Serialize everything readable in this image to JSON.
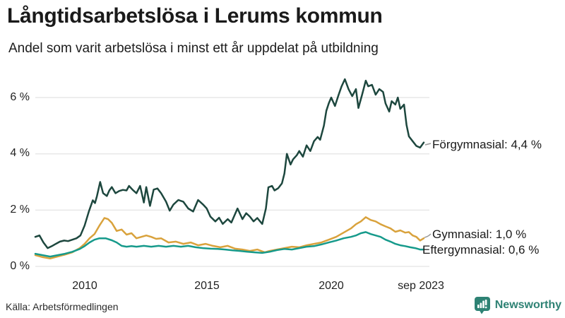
{
  "header": {
    "title": "Långtidsarbetslösa i Lerums kommun",
    "subtitle": "Andel som varit arbetslösa i minst ett år uppdelat på utbildning"
  },
  "chart_data": {
    "type": "line",
    "title": "Långtidsarbetslösa i Lerums kommun",
    "subtitle": "Andel som varit arbetslösa i minst ett år uppdelat på utbildning",
    "grid": true,
    "legend_position": "right-of-line-ends",
    "x_axis": {
      "range": [
        2008.0,
        2023.75
      ],
      "ticks": [
        {
          "label": "2010",
          "value": 2010
        },
        {
          "label": "2015",
          "value": 2015
        },
        {
          "label": "2020",
          "value": 2020
        },
        {
          "label": "sep 2023",
          "value": 2023.67
        }
      ]
    },
    "y_axis": {
      "unit": "%",
      "range": [
        0,
        7
      ],
      "ticks": [
        {
          "label": "6 %",
          "value": 6
        },
        {
          "label": "4 %",
          "value": 4
        },
        {
          "label": "2 %",
          "value": 2
        },
        {
          "label": "0 %",
          "value": 0
        }
      ]
    },
    "series": [
      {
        "name": "Förgymnasial",
        "end_label": "Förgymnasial: 4,4 %",
        "end_value_pct": 4.4,
        "color": "#1d473e",
        "points": [
          [
            2008.0,
            1.05
          ],
          [
            2008.17,
            1.1
          ],
          [
            2008.33,
            0.85
          ],
          [
            2008.5,
            0.65
          ],
          [
            2008.67,
            0.72
          ],
          [
            2008.83,
            0.8
          ],
          [
            2009.0,
            0.88
          ],
          [
            2009.17,
            0.92
          ],
          [
            2009.33,
            0.9
          ],
          [
            2009.5,
            0.95
          ],
          [
            2009.67,
            1.0
          ],
          [
            2009.83,
            1.1
          ],
          [
            2010.0,
            1.45
          ],
          [
            2010.17,
            1.95
          ],
          [
            2010.33,
            2.35
          ],
          [
            2010.42,
            2.25
          ],
          [
            2010.5,
            2.5
          ],
          [
            2010.63,
            3.0
          ],
          [
            2010.75,
            2.6
          ],
          [
            2010.9,
            2.5
          ],
          [
            2011.0,
            2.7
          ],
          [
            2011.1,
            2.82
          ],
          [
            2011.25,
            2.6
          ],
          [
            2011.4,
            2.68
          ],
          [
            2011.55,
            2.72
          ],
          [
            2011.7,
            2.7
          ],
          [
            2011.8,
            2.86
          ],
          [
            2011.95,
            2.72
          ],
          [
            2012.1,
            2.6
          ],
          [
            2012.25,
            2.86
          ],
          [
            2012.4,
            2.27
          ],
          [
            2012.5,
            2.82
          ],
          [
            2012.65,
            2.15
          ],
          [
            2012.8,
            2.73
          ],
          [
            2012.95,
            2.77
          ],
          [
            2013.1,
            2.6
          ],
          [
            2013.3,
            2.3
          ],
          [
            2013.45,
            1.98
          ],
          [
            2013.6,
            2.2
          ],
          [
            2013.8,
            2.36
          ],
          [
            2014.0,
            2.3
          ],
          [
            2014.2,
            2.06
          ],
          [
            2014.4,
            1.95
          ],
          [
            2014.6,
            2.36
          ],
          [
            2014.8,
            2.2
          ],
          [
            2014.95,
            2.06
          ],
          [
            2015.1,
            1.77
          ],
          [
            2015.3,
            1.6
          ],
          [
            2015.45,
            1.73
          ],
          [
            2015.6,
            1.51
          ],
          [
            2015.8,
            1.68
          ],
          [
            2015.95,
            1.56
          ],
          [
            2016.2,
            2.06
          ],
          [
            2016.4,
            1.68
          ],
          [
            2016.55,
            1.89
          ],
          [
            2016.7,
            1.77
          ],
          [
            2016.85,
            1.6
          ],
          [
            2017.0,
            1.72
          ],
          [
            2017.2,
            1.51
          ],
          [
            2017.35,
            2.06
          ],
          [
            2017.45,
            2.81
          ],
          [
            2017.6,
            2.86
          ],
          [
            2017.7,
            2.7
          ],
          [
            2017.85,
            2.78
          ],
          [
            2018.0,
            2.95
          ],
          [
            2018.1,
            3.3
          ],
          [
            2018.2,
            4.0
          ],
          [
            2018.35,
            3.62
          ],
          [
            2018.45,
            3.8
          ],
          [
            2018.6,
            3.95
          ],
          [
            2018.7,
            4.1
          ],
          [
            2018.85,
            3.9
          ],
          [
            2019.0,
            4.3
          ],
          [
            2019.15,
            4.1
          ],
          [
            2019.3,
            4.45
          ],
          [
            2019.45,
            4.6
          ],
          [
            2019.55,
            4.5
          ],
          [
            2019.7,
            5.0
          ],
          [
            2019.8,
            5.53
          ],
          [
            2019.9,
            5.8
          ],
          [
            2020.0,
            6.0
          ],
          [
            2020.15,
            5.7
          ],
          [
            2020.3,
            6.1
          ],
          [
            2020.42,
            6.4
          ],
          [
            2020.55,
            6.65
          ],
          [
            2020.7,
            6.3
          ],
          [
            2020.85,
            6.05
          ],
          [
            2021.0,
            6.3
          ],
          [
            2021.1,
            5.63
          ],
          [
            2021.25,
            6.1
          ],
          [
            2021.4,
            6.6
          ],
          [
            2021.5,
            6.4
          ],
          [
            2021.65,
            6.45
          ],
          [
            2021.8,
            6.1
          ],
          [
            2021.95,
            6.3
          ],
          [
            2022.1,
            6.2
          ],
          [
            2022.2,
            5.79
          ],
          [
            2022.35,
            5.5
          ],
          [
            2022.45,
            5.87
          ],
          [
            2022.6,
            5.75
          ],
          [
            2022.7,
            6.0
          ],
          [
            2022.8,
            5.6
          ],
          [
            2022.95,
            5.75
          ],
          [
            2023.05,
            5.03
          ],
          [
            2023.15,
            4.62
          ],
          [
            2023.3,
            4.45
          ],
          [
            2023.45,
            4.28
          ],
          [
            2023.6,
            4.22
          ],
          [
            2023.75,
            4.4
          ]
        ]
      },
      {
        "name": "Gymnasial",
        "end_label": "Gymnasial: 1,0 %",
        "end_value_pct": 1.0,
        "color": "#d9a23c",
        "points": [
          [
            2008.0,
            0.4
          ],
          [
            2008.3,
            0.33
          ],
          [
            2008.6,
            0.28
          ],
          [
            2008.9,
            0.35
          ],
          [
            2009.2,
            0.42
          ],
          [
            2009.5,
            0.5
          ],
          [
            2009.8,
            0.65
          ],
          [
            2010.0,
            0.8
          ],
          [
            2010.2,
            1.0
          ],
          [
            2010.4,
            1.15
          ],
          [
            2010.6,
            1.45
          ],
          [
            2010.8,
            1.72
          ],
          [
            2010.95,
            1.68
          ],
          [
            2011.1,
            1.55
          ],
          [
            2011.3,
            1.26
          ],
          [
            2011.5,
            1.31
          ],
          [
            2011.7,
            1.13
          ],
          [
            2011.9,
            1.18
          ],
          [
            2012.1,
            1.0
          ],
          [
            2012.3,
            1.05
          ],
          [
            2012.5,
            1.1
          ],
          [
            2012.7,
            1.05
          ],
          [
            2012.9,
            0.98
          ],
          [
            2013.1,
            1.0
          ],
          [
            2013.4,
            0.85
          ],
          [
            2013.7,
            0.88
          ],
          [
            2014.0,
            0.8
          ],
          [
            2014.3,
            0.85
          ],
          [
            2014.6,
            0.75
          ],
          [
            2014.9,
            0.8
          ],
          [
            2015.2,
            0.73
          ],
          [
            2015.5,
            0.68
          ],
          [
            2015.8,
            0.73
          ],
          [
            2016.1,
            0.63
          ],
          [
            2016.4,
            0.6
          ],
          [
            2016.7,
            0.55
          ],
          [
            2017.0,
            0.6
          ],
          [
            2017.3,
            0.5
          ],
          [
            2017.5,
            0.55
          ],
          [
            2017.8,
            0.6
          ],
          [
            2018.1,
            0.65
          ],
          [
            2018.4,
            0.7
          ],
          [
            2018.7,
            0.68
          ],
          [
            2019.0,
            0.75
          ],
          [
            2019.3,
            0.8
          ],
          [
            2019.6,
            0.85
          ],
          [
            2019.9,
            0.95
          ],
          [
            2020.2,
            1.05
          ],
          [
            2020.5,
            1.2
          ],
          [
            2020.8,
            1.35
          ],
          [
            2021.0,
            1.5
          ],
          [
            2021.2,
            1.6
          ],
          [
            2021.4,
            1.75
          ],
          [
            2021.6,
            1.65
          ],
          [
            2021.8,
            1.6
          ],
          [
            2022.0,
            1.5
          ],
          [
            2022.2,
            1.42
          ],
          [
            2022.4,
            1.35
          ],
          [
            2022.6,
            1.23
          ],
          [
            2022.8,
            1.28
          ],
          [
            2023.0,
            1.2
          ],
          [
            2023.15,
            1.22
          ],
          [
            2023.3,
            1.1
          ],
          [
            2023.45,
            1.05
          ],
          [
            2023.6,
            0.92
          ],
          [
            2023.75,
            1.0
          ]
        ]
      },
      {
        "name": "Eftergymnasial",
        "end_label": "Eftergymnasial: 0,6 %",
        "end_value_pct": 0.6,
        "color": "#169a8b",
        "points": [
          [
            2008.0,
            0.45
          ],
          [
            2008.3,
            0.4
          ],
          [
            2008.6,
            0.35
          ],
          [
            2008.9,
            0.4
          ],
          [
            2009.2,
            0.45
          ],
          [
            2009.5,
            0.52
          ],
          [
            2009.8,
            0.62
          ],
          [
            2010.0,
            0.72
          ],
          [
            2010.2,
            0.85
          ],
          [
            2010.4,
            0.95
          ],
          [
            2010.6,
            1.0
          ],
          [
            2010.85,
            1.0
          ],
          [
            2011.1,
            0.93
          ],
          [
            2011.3,
            0.85
          ],
          [
            2011.5,
            0.73
          ],
          [
            2011.7,
            0.7
          ],
          [
            2011.9,
            0.72
          ],
          [
            2012.1,
            0.7
          ],
          [
            2012.4,
            0.73
          ],
          [
            2012.7,
            0.7
          ],
          [
            2013.0,
            0.73
          ],
          [
            2013.3,
            0.7
          ],
          [
            2013.6,
            0.73
          ],
          [
            2013.9,
            0.7
          ],
          [
            2014.2,
            0.73
          ],
          [
            2014.5,
            0.68
          ],
          [
            2014.8,
            0.65
          ],
          [
            2015.1,
            0.63
          ],
          [
            2015.4,
            0.62
          ],
          [
            2015.7,
            0.6
          ],
          [
            2016.0,
            0.57
          ],
          [
            2016.3,
            0.55
          ],
          [
            2016.6,
            0.52
          ],
          [
            2016.9,
            0.5
          ],
          [
            2017.2,
            0.48
          ],
          [
            2017.5,
            0.52
          ],
          [
            2017.8,
            0.58
          ],
          [
            2018.1,
            0.62
          ],
          [
            2018.4,
            0.6
          ],
          [
            2018.7,
            0.65
          ],
          [
            2019.0,
            0.7
          ],
          [
            2019.3,
            0.72
          ],
          [
            2019.6,
            0.78
          ],
          [
            2019.9,
            0.85
          ],
          [
            2020.2,
            0.92
          ],
          [
            2020.5,
            1.0
          ],
          [
            2020.8,
            1.05
          ],
          [
            2021.0,
            1.1
          ],
          [
            2021.2,
            1.18
          ],
          [
            2021.4,
            1.22
          ],
          [
            2021.6,
            1.15
          ],
          [
            2021.8,
            1.1
          ],
          [
            2022.0,
            1.05
          ],
          [
            2022.2,
            0.95
          ],
          [
            2022.4,
            0.88
          ],
          [
            2022.6,
            0.8
          ],
          [
            2022.8,
            0.75
          ],
          [
            2023.0,
            0.72
          ],
          [
            2023.2,
            0.68
          ],
          [
            2023.4,
            0.65
          ],
          [
            2023.6,
            0.6
          ],
          [
            2023.75,
            0.6
          ]
        ]
      }
    ]
  },
  "footer": {
    "source": "Källa: Arbetsförmedlingen",
    "brand": "Newsworthy"
  },
  "colors": {
    "grid": "#e9e9e9",
    "connector": "#999999",
    "brand_teal": "#2e8274",
    "text": "#1a1a1a"
  }
}
